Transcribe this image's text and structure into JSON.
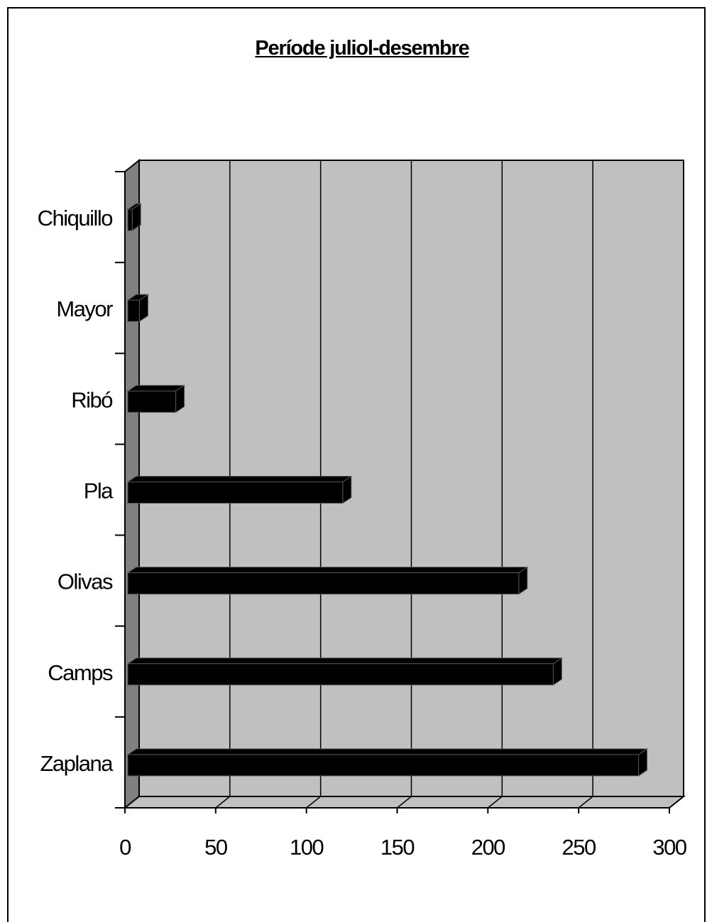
{
  "chart_data": {
    "type": "bar",
    "orientation": "horizontal",
    "style": "3d",
    "title": "Període juliol-desembre",
    "categories": [
      "Zaplana",
      "Camps",
      "Olivas",
      "Pla",
      "Ribó",
      "Mayor",
      "Chiquillo"
    ],
    "values": [
      283,
      236,
      217,
      120,
      28,
      8,
      4
    ],
    "xlim": [
      0,
      300
    ],
    "xticks": [
      "0",
      "50",
      "100",
      "150",
      "200",
      "250",
      "300"
    ],
    "xlabel": "",
    "ylabel": "",
    "grid": true,
    "legend": "none",
    "colors": {
      "bar": "#000000",
      "bar_edge": "#555555",
      "wall": "#c0c0c0",
      "side_wall": "#808080",
      "floor": "#c0c0c0",
      "grid": "#000000"
    }
  }
}
